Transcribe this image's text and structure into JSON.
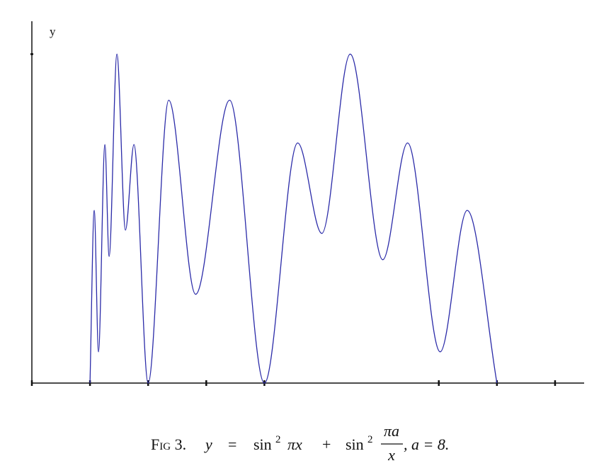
{
  "chart_data": {
    "type": "line",
    "y_label": "y",
    "x": [
      1,
      1.073,
      1.146,
      1.256,
      1.329,
      1.463,
      1.61,
      1.756,
      2,
      2.354,
      2.817,
      3.402,
      4,
      4.573,
      4.988,
      5.476,
      6.037,
      6.463,
      7.024,
      7.488,
      8
    ],
    "series": [
      {
        "color": "#2a2aa8",
        "values": [
          0,
          1.05,
          0.19,
          1.45,
          0.77,
          2.0,
          0.93,
          1.45,
          0,
          1.72,
          0.54,
          1.72,
          0,
          1.46,
          0.91,
          2.0,
          0.75,
          1.46,
          0.19,
          1.05,
          0
        ]
      }
    ],
    "xlim": [
      0,
      9.5
    ],
    "xticks": [
      0,
      1,
      2,
      3,
      4,
      7,
      8,
      9
    ],
    "ylim": [
      0,
      2.2
    ],
    "yticks": [
      2
    ],
    "grid": false
  },
  "caption": {
    "label": "Fig 3.",
    "lhs": "y",
    "eq": "=",
    "sin1": "sin",
    "exp1": "2",
    "arg1": "πx",
    "plus": "+",
    "sin2": "sin",
    "exp2": "2",
    "numerator": "πa",
    "denominator": "x",
    "tail": ", a = 8."
  }
}
